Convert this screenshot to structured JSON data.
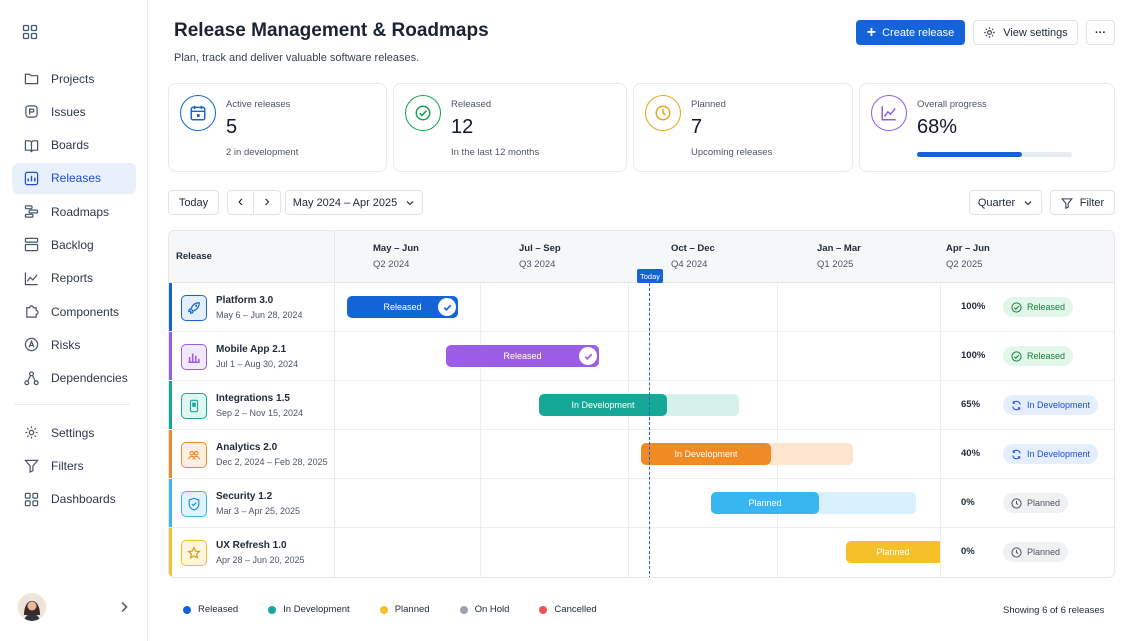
{
  "sidebar": {
    "items": [
      {
        "label": "Projects",
        "icon": "folder-icon"
      },
      {
        "label": "Issues",
        "icon": "issues-icon"
      },
      {
        "label": "Boards",
        "icon": "book-icon"
      },
      {
        "label": "Releases",
        "icon": "chart-icon",
        "active": true
      },
      {
        "label": "Roadmaps",
        "icon": "roadmap-icon"
      },
      {
        "label": "Backlog",
        "icon": "backlog-icon"
      },
      {
        "label": "Reports",
        "icon": "trend-icon"
      },
      {
        "label": "Components",
        "icon": "puzzle-icon"
      },
      {
        "label": "Risks",
        "icon": "risk-icon"
      },
      {
        "label": "Dependencies",
        "icon": "nodes-icon"
      }
    ],
    "secondary": [
      {
        "label": "Settings",
        "icon": "gear-icon"
      },
      {
        "label": "Filters",
        "icon": "filter-icon"
      },
      {
        "label": "Dashboards",
        "icon": "grid-icon"
      }
    ]
  },
  "header": {
    "title": "Release Management & Roadmaps",
    "subtitle": "Plan, track and deliver valuable software releases.",
    "create_label": "Create release",
    "settings_label": "View settings",
    "more_label": "···"
  },
  "stats": [
    {
      "label": "Active releases",
      "value": "5",
      "sub": "2 in development",
      "color": "#1463d8"
    },
    {
      "label": "Released",
      "value": "12",
      "sub": "In the last 12 months",
      "color": "#16a34a"
    },
    {
      "label": "Planned",
      "value": "7",
      "sub": "Upcoming releases",
      "color": "#e5a61a"
    },
    {
      "label": "Overall progress",
      "value": "68%",
      "sub": "",
      "progress": 0.68,
      "color": "#8b5cf6"
    }
  ],
  "toolbar": {
    "today_label": "Today",
    "prev_label": "‹",
    "next_label": "›",
    "range_label": "May 2024 – Apr 2025",
    "zoom_label": "Quarter",
    "filter_label": "Filter"
  },
  "gantt": {
    "release_header": "Release",
    "today_label": "Today",
    "quarters": [
      {
        "name": "May – Jun",
        "sub": "Q2 2024"
      },
      {
        "name": "Jul – Sep",
        "sub": "Q3 2024"
      },
      {
        "name": "Oct – Dec",
        "sub": "Q4 2024"
      },
      {
        "name": "Jan – Mar",
        "sub": "Q1 2025"
      },
      {
        "name": "Apr – Jun",
        "sub": "Q2 2025"
      }
    ],
    "rows": [
      {
        "name": "Platform 3.0",
        "dates": "May 6 – Jun 28, 2024",
        "bar_label": "Released",
        "progress": "100%",
        "status": "Released",
        "color": "#1463d8",
        "icon": "rocket-icon"
      },
      {
        "name": "Mobile App 2.1",
        "dates": "Jul 1 – Aug 30, 2024",
        "bar_label": "Released",
        "progress": "100%",
        "status": "Released",
        "color": "#9b5de5",
        "icon": "bar-chart-icon"
      },
      {
        "name": "Integrations 1.5",
        "dates": "Sep 2 – Nov 15, 2024",
        "bar_label": "In Development",
        "progress": "65%",
        "status": "In Development",
        "color": "#16a896",
        "icon": "device-icon"
      },
      {
        "name": "Analytics 2.0",
        "dates": "Dec 2, 2024 – Feb 28, 2025",
        "bar_label": "In Development",
        "progress": "40%",
        "status": "In Development",
        "color": "#f08a24",
        "icon": "users-icon"
      },
      {
        "name": "Security 1.2",
        "dates": "Mar 3 – Apr 25, 2025",
        "bar_label": "Planned",
        "progress": "0%",
        "status": "Planned",
        "color": "#38b6f1",
        "icon": "shield-icon"
      },
      {
        "name": "UX Refresh 1.0",
        "dates": "Apr 28 – Jun 20, 2025",
        "bar_label": "Planned",
        "progress": "0%",
        "status": "Planned",
        "color": "#f5c02a",
        "icon": "star-icon"
      }
    ]
  },
  "legend": [
    {
      "label": "Released",
      "color": "#1463d8"
    },
    {
      "label": "In Development",
      "color": "#16a896"
    },
    {
      "label": "Planned",
      "color": "#f5c02a"
    },
    {
      "label": "On Hold",
      "color": "#9ca3af"
    },
    {
      "label": "Cancelled",
      "color": "#ef5350"
    }
  ],
  "footer": {
    "showing": "Showing 6 of 6 releases"
  }
}
